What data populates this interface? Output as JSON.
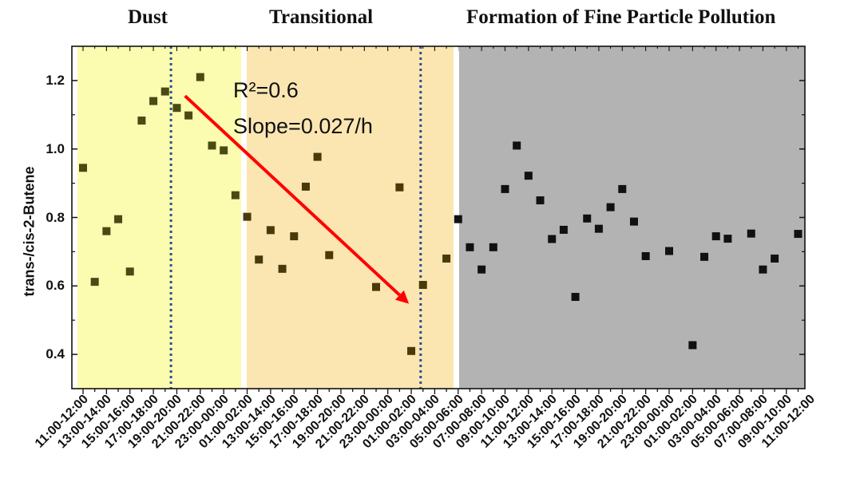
{
  "chart_data": {
    "type": "scatter",
    "title": "",
    "xlabel": "",
    "ylabel": "trans-/cis-2-Butene",
    "ylim": [
      0.3,
      1.3
    ],
    "yticks": [
      "0.4",
      "0.6",
      "0.8",
      "1.0",
      "1.2"
    ],
    "grid": false,
    "legend": "none",
    "periods": [
      {
        "name": "Dust",
        "from_index": 0,
        "to_index": 13,
        "color": "#fbfcb0"
      },
      {
        "name": "Transitional",
        "from_index": 14,
        "to_index": 31,
        "color": "#fbe6b2"
      },
      {
        "name": "Formation of Fine Particle Pollution",
        "from_index": 32,
        "to_index": 61,
        "color": "#b3b3b3"
      }
    ],
    "x_tick_labels": [
      "11:00-12:00",
      "13:00-14:00",
      "15:00-16:00",
      "17:00-18:00",
      "19:00-20:00",
      "21:00-22:00",
      "23:00-00:00",
      "01:00-02:00",
      "13:00-14:00",
      "15:00-16:00",
      "17:00-18:00",
      "19:00-20:00",
      "21:00-22:00",
      "23:00-00:00",
      "01:00-02:00",
      "03:00-04:00",
      "05:00-06:00",
      "07:00-08:00",
      "09:00-10:00",
      "11:00-12:00",
      "13:00-14:00",
      "15:00-16:00",
      "17:00-18:00",
      "19:00-20:00",
      "21:00-22:00",
      "23:00-00:00",
      "01:00-02:00",
      "03:00-04:00",
      "05:00-06:00",
      "07:00-08:00",
      "09:00-10:00",
      "11:00-12:00"
    ],
    "series": [
      {
        "marker": "square",
        "points": [
          {
            "x": 0,
            "y": 0.945
          },
          {
            "x": 1,
            "y": 0.612
          },
          {
            "x": 2,
            "y": 0.76
          },
          {
            "x": 3,
            "y": 0.795
          },
          {
            "x": 4,
            "y": 0.642
          },
          {
            "x": 5,
            "y": 1.083
          },
          {
            "x": 6,
            "y": 1.14
          },
          {
            "x": 7,
            "y": 1.168
          },
          {
            "x": 8,
            "y": 1.12
          },
          {
            "x": 9,
            "y": 1.098
          },
          {
            "x": 10,
            "y": 1.21
          },
          {
            "x": 11,
            "y": 1.01
          },
          {
            "x": 12,
            "y": 0.996
          },
          {
            "x": 13,
            "y": 0.865
          },
          {
            "x": 14,
            "y": 0.802
          },
          {
            "x": 15,
            "y": 0.677
          },
          {
            "x": 16,
            "y": 0.763
          },
          {
            "x": 17,
            "y": 0.65
          },
          {
            "x": 18,
            "y": 0.745
          },
          {
            "x": 19,
            "y": 0.89
          },
          {
            "x": 20,
            "y": 0.977
          },
          {
            "x": 21,
            "y": 0.69
          },
          {
            "x": 25,
            "y": 0.597
          },
          {
            "x": 27,
            "y": 0.888
          },
          {
            "x": 28,
            "y": 0.41
          },
          {
            "x": 29,
            "y": 0.603
          },
          {
            "x": 31,
            "y": 0.68
          },
          {
            "x": 32,
            "y": 0.795
          },
          {
            "x": 33,
            "y": 0.713
          },
          {
            "x": 34,
            "y": 0.648
          },
          {
            "x": 35,
            "y": 0.713
          },
          {
            "x": 36,
            "y": 0.883
          },
          {
            "x": 37,
            "y": 1.01
          },
          {
            "x": 38,
            "y": 0.922
          },
          {
            "x": 39,
            "y": 0.85
          },
          {
            "x": 40,
            "y": 0.737
          },
          {
            "x": 41,
            "y": 0.764
          },
          {
            "x": 42,
            "y": 0.568
          },
          {
            "x": 43,
            "y": 0.797
          },
          {
            "x": 44,
            "y": 0.767
          },
          {
            "x": 45,
            "y": 0.83
          },
          {
            "x": 46,
            "y": 0.883
          },
          {
            "x": 47,
            "y": 0.788
          },
          {
            "x": 48,
            "y": 0.687
          },
          {
            "x": 50,
            "y": 0.702
          },
          {
            "x": 52,
            "y": 0.427
          },
          {
            "x": 53,
            "y": 0.685
          },
          {
            "x": 54,
            "y": 0.745
          },
          {
            "x": 55,
            "y": 0.738
          },
          {
            "x": 57,
            "y": 0.753
          },
          {
            "x": 58,
            "y": 0.648
          },
          {
            "x": 59,
            "y": 0.68
          },
          {
            "x": 61,
            "y": 0.752
          }
        ]
      }
    ],
    "dashed_lines_at": [
      7.5,
      28.8
    ],
    "trend_arrow": {
      "from": {
        "x": 8.7,
        "y": 1.155
      },
      "to": {
        "x": 27.8,
        "y": 0.548
      },
      "color": "#ff0000"
    },
    "annotations": [
      "R²=0.6",
      "Slope=0.027/h"
    ],
    "colors": {
      "marker_dust": "#4a4a14",
      "marker_transitional": "#4a3a0a",
      "marker_pollution": "#111111",
      "divider": "#ffffff",
      "dashed": "#2f4f8f"
    }
  }
}
